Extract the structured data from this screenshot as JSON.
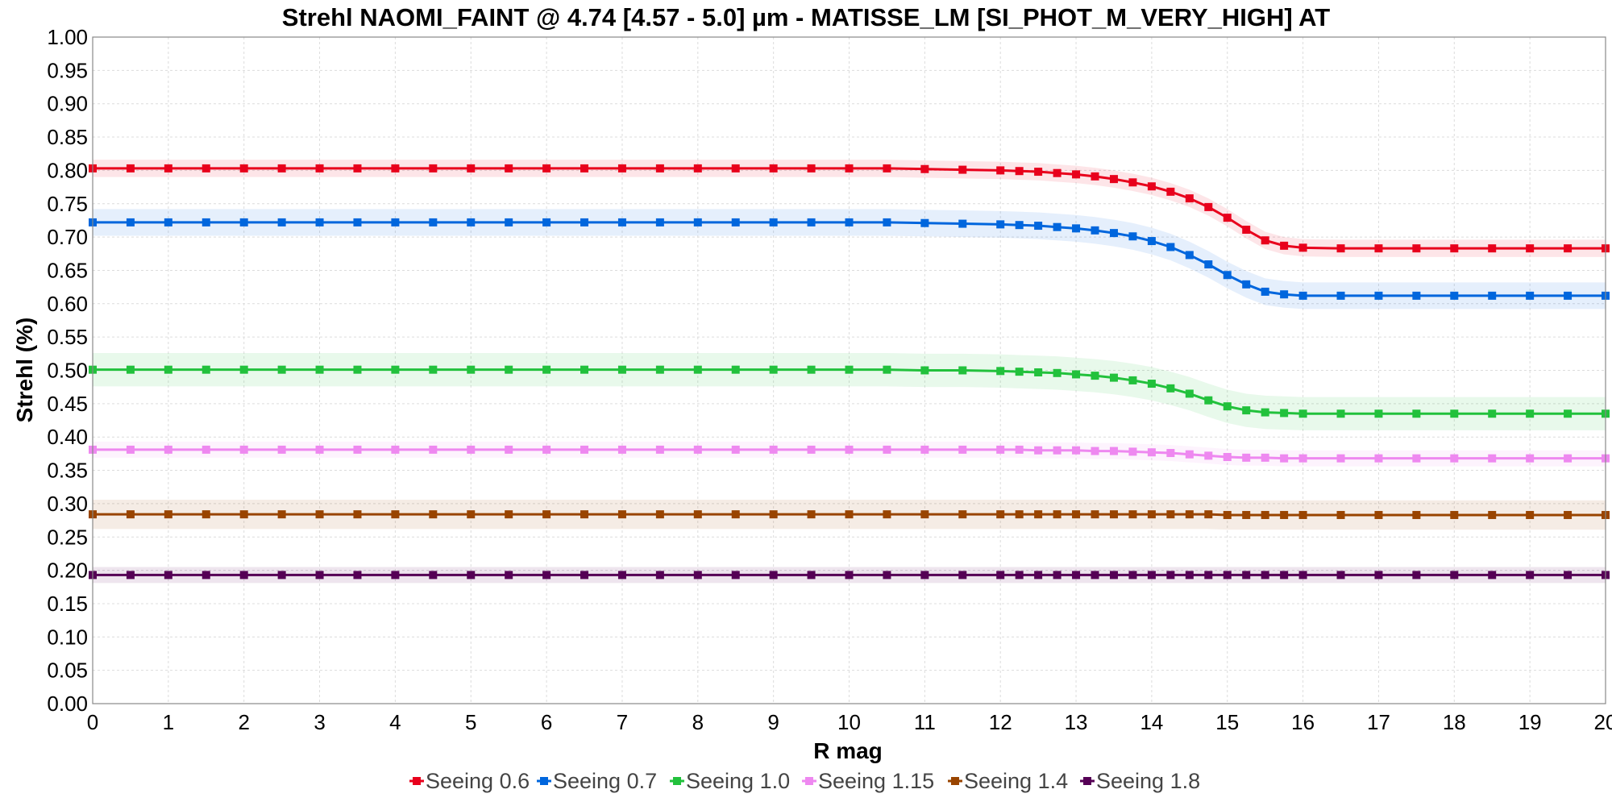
{
  "chart_data": {
    "type": "line",
    "title": "Strehl NAOMI_FAINT @ 4.74 [4.57 - 5.0] µm - MATISSE_LM [SI_PHOT_M_VERY_HIGH] AT",
    "xlabel": "R mag",
    "ylabel": "Strehl (%)",
    "xlim": [
      0,
      20
    ],
    "ylim": [
      0,
      1.0
    ],
    "x_ticks": [
      "0",
      "1",
      "2",
      "3",
      "4",
      "5",
      "6",
      "7",
      "8",
      "9",
      "10",
      "11",
      "12",
      "13",
      "14",
      "15",
      "16",
      "17",
      "18",
      "19",
      "20"
    ],
    "y_ticks": [
      "0.00",
      "0.05",
      "0.10",
      "0.15",
      "0.20",
      "0.25",
      "0.30",
      "0.35",
      "0.40",
      "0.45",
      "0.50",
      "0.55",
      "0.60",
      "0.65",
      "0.70",
      "0.75",
      "0.80",
      "0.85",
      "0.90",
      "0.95",
      "1.00"
    ],
    "grid": true,
    "legend_position": "bottom",
    "x": [
      0,
      0.5,
      1,
      1.5,
      2,
      2.5,
      3,
      3.5,
      4,
      4.5,
      5,
      5.5,
      6,
      6.5,
      7,
      7.5,
      8,
      8.5,
      9,
      9.5,
      10,
      10.5,
      11,
      11.5,
      12,
      12.25,
      12.5,
      12.75,
      13,
      13.25,
      13.5,
      13.75,
      14,
      14.25,
      14.5,
      14.75,
      15,
      15.25,
      15.5,
      15.75,
      16,
      16.5,
      17,
      17.5,
      18,
      18.5,
      19,
      19.5,
      20
    ],
    "series": [
      {
        "name": "Seeing 0.6",
        "color": "#e8001c",
        "values": [
          0.803,
          0.803,
          0.803,
          0.803,
          0.803,
          0.803,
          0.803,
          0.803,
          0.803,
          0.803,
          0.803,
          0.803,
          0.803,
          0.803,
          0.803,
          0.803,
          0.803,
          0.803,
          0.803,
          0.803,
          0.803,
          0.803,
          0.802,
          0.801,
          0.8,
          0.799,
          0.798,
          0.796,
          0.794,
          0.791,
          0.787,
          0.782,
          0.776,
          0.768,
          0.758,
          0.745,
          0.729,
          0.711,
          0.695,
          0.687,
          0.684,
          0.683,
          0.683,
          0.683,
          0.683,
          0.683,
          0.683,
          0.683,
          0.683
        ],
        "band": 0.013
      },
      {
        "name": "Seeing 0.7",
        "color": "#0066dd",
        "values": [
          0.722,
          0.722,
          0.722,
          0.722,
          0.722,
          0.722,
          0.722,
          0.722,
          0.722,
          0.722,
          0.722,
          0.722,
          0.722,
          0.722,
          0.722,
          0.722,
          0.722,
          0.722,
          0.722,
          0.722,
          0.722,
          0.722,
          0.721,
          0.72,
          0.719,
          0.718,
          0.717,
          0.715,
          0.713,
          0.71,
          0.706,
          0.701,
          0.694,
          0.685,
          0.673,
          0.659,
          0.643,
          0.629,
          0.618,
          0.614,
          0.612,
          0.612,
          0.612,
          0.612,
          0.612,
          0.612,
          0.612,
          0.612,
          0.612
        ],
        "band": 0.02
      },
      {
        "name": "Seeing 1.0",
        "color": "#22c13c",
        "values": [
          0.501,
          0.501,
          0.501,
          0.501,
          0.501,
          0.501,
          0.501,
          0.501,
          0.501,
          0.501,
          0.501,
          0.501,
          0.501,
          0.501,
          0.501,
          0.501,
          0.501,
          0.501,
          0.501,
          0.501,
          0.501,
          0.501,
          0.5,
          0.5,
          0.499,
          0.498,
          0.497,
          0.496,
          0.494,
          0.492,
          0.489,
          0.485,
          0.48,
          0.473,
          0.465,
          0.455,
          0.446,
          0.44,
          0.437,
          0.436,
          0.435,
          0.435,
          0.435,
          0.435,
          0.435,
          0.435,
          0.435,
          0.435,
          0.435
        ],
        "band": 0.025
      },
      {
        "name": "Seeing 1.15",
        "color": "#ee88f0",
        "values": [
          0.381,
          0.381,
          0.381,
          0.381,
          0.381,
          0.381,
          0.381,
          0.381,
          0.381,
          0.381,
          0.381,
          0.381,
          0.381,
          0.381,
          0.381,
          0.381,
          0.381,
          0.381,
          0.381,
          0.381,
          0.381,
          0.381,
          0.381,
          0.381,
          0.381,
          0.381,
          0.38,
          0.38,
          0.38,
          0.379,
          0.379,
          0.378,
          0.377,
          0.376,
          0.374,
          0.372,
          0.37,
          0.369,
          0.369,
          0.368,
          0.368,
          0.368,
          0.368,
          0.368,
          0.368,
          0.368,
          0.368,
          0.368,
          0.368
        ],
        "band": 0.012
      },
      {
        "name": "Seeing 1.4",
        "color": "#994400",
        "values": [
          0.284,
          0.284,
          0.284,
          0.284,
          0.284,
          0.284,
          0.284,
          0.284,
          0.284,
          0.284,
          0.284,
          0.284,
          0.284,
          0.284,
          0.284,
          0.284,
          0.284,
          0.284,
          0.284,
          0.284,
          0.284,
          0.284,
          0.284,
          0.284,
          0.284,
          0.284,
          0.284,
          0.284,
          0.284,
          0.284,
          0.284,
          0.284,
          0.284,
          0.284,
          0.284,
          0.284,
          0.283,
          0.283,
          0.283,
          0.283,
          0.283,
          0.283,
          0.283,
          0.283,
          0.283,
          0.283,
          0.283,
          0.283,
          0.283
        ],
        "band": 0.022
      },
      {
        "name": "Seeing 1.8",
        "color": "#550055",
        "values": [
          0.193,
          0.193,
          0.193,
          0.193,
          0.193,
          0.193,
          0.193,
          0.193,
          0.193,
          0.193,
          0.193,
          0.193,
          0.193,
          0.193,
          0.193,
          0.193,
          0.193,
          0.193,
          0.193,
          0.193,
          0.193,
          0.193,
          0.193,
          0.193,
          0.193,
          0.193,
          0.193,
          0.193,
          0.193,
          0.193,
          0.193,
          0.193,
          0.193,
          0.193,
          0.193,
          0.193,
          0.193,
          0.193,
          0.193,
          0.193,
          0.193,
          0.193,
          0.193,
          0.193,
          0.193,
          0.193,
          0.193,
          0.193,
          0.193
        ],
        "band": 0.012
      }
    ]
  }
}
